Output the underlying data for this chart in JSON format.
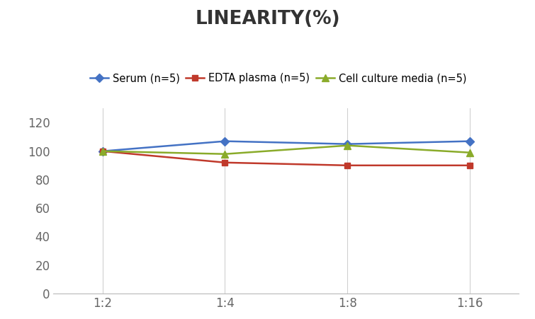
{
  "title": "LINEARITY(%)",
  "title_fontsize": 19,
  "title_fontweight": "bold",
  "title_color": "#333333",
  "x_labels": [
    "1:2",
    "1:4",
    "1:8",
    "1:16"
  ],
  "x_positions": [
    0,
    1,
    2,
    3
  ],
  "series": [
    {
      "label": "Serum (n=5)",
      "values": [
        100,
        107,
        105,
        107
      ],
      "color": "#4472C4",
      "marker": "D",
      "markersize": 6,
      "linewidth": 1.8
    },
    {
      "label": "EDTA plasma (n=5)",
      "values": [
        100,
        92,
        90,
        90
      ],
      "color": "#C0392B",
      "marker": "s",
      "markersize": 6,
      "linewidth": 1.8
    },
    {
      "label": "Cell culture media (n=5)",
      "values": [
        100,
        98,
        104,
        99
      ],
      "color": "#8aab2a",
      "marker": "^",
      "markersize": 7,
      "linewidth": 1.8
    }
  ],
  "ylim": [
    0,
    130
  ],
  "yticks": [
    0,
    20,
    40,
    60,
    80,
    100,
    120
  ],
  "grid_color": "#d0d0d0",
  "grid_linewidth": 0.8,
  "legend_fontsize": 10.5,
  "tick_fontsize": 12,
  "tick_color": "#666666",
  "background_color": "#ffffff",
  "spine_color": "#bbbbbb",
  "spine_linewidth": 0.8
}
